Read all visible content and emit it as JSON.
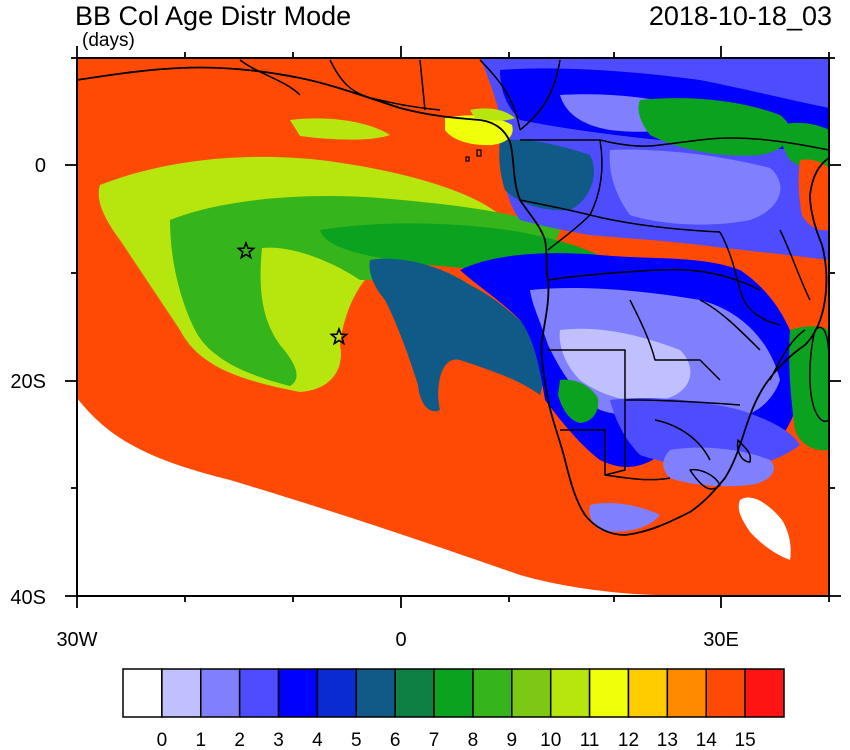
{
  "header": {
    "title": "BB Col Age Distr Mode",
    "units": "(days)",
    "timestamp": "2018-10-18_03"
  },
  "axes": {
    "y_labels": [
      "0",
      "20S",
      "40S"
    ],
    "x_labels": [
      "30W",
      "0",
      "30E"
    ]
  },
  "colorbar": {
    "labels": [
      "0",
      "1",
      "2",
      "3",
      "4",
      "5",
      "6",
      "7",
      "8",
      "9",
      "10",
      "11",
      "12",
      "13",
      "14",
      "15"
    ],
    "colors": [
      "#ffffff",
      "#c0c0ff",
      "#8080ff",
      "#4d4dff",
      "#0000ff",
      "#0a2bd1",
      "#0f5a86",
      "#0e8044",
      "#0aa21e",
      "#36b41c",
      "#7cc814",
      "#b6e60e",
      "#f0ff0a",
      "#ffcc00",
      "#ff8a00",
      "#ff4a05",
      "#ff1414"
    ]
  },
  "markers": {
    "symbol": "star",
    "count": 2
  }
}
